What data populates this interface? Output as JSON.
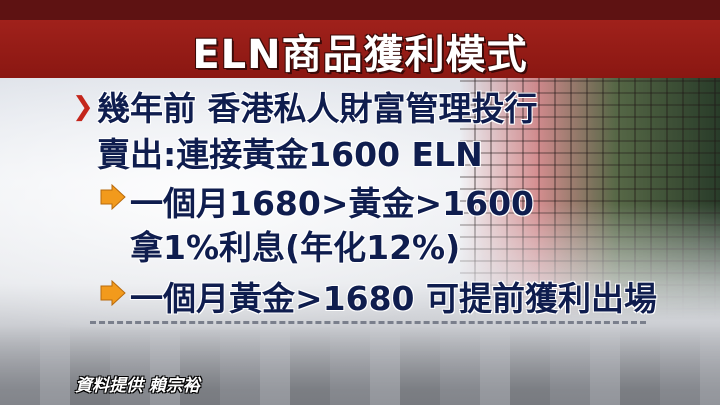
{
  "title": "ELN商品獲利模式",
  "lines": {
    "l1": "幾年前 香港私人財富管理投行",
    "l2": "賣出:連接黃金1600 ELN",
    "l3": "一個月1680>黃金>1600",
    "l4": "拿1%利息(年化12%)",
    "l5": "一個月黃金>1680 可提前獲利出場"
  },
  "credit": "資料提供 賴宗裕",
  "colors": {
    "title_bar": "#8a1712",
    "text": "#0f1d4e",
    "arrow": "#f29a1c",
    "chevron": "#c4261c"
  },
  "icons": {
    "bullet1": "chevron-right-icon",
    "bullet2": "orange-arrow-icon"
  }
}
